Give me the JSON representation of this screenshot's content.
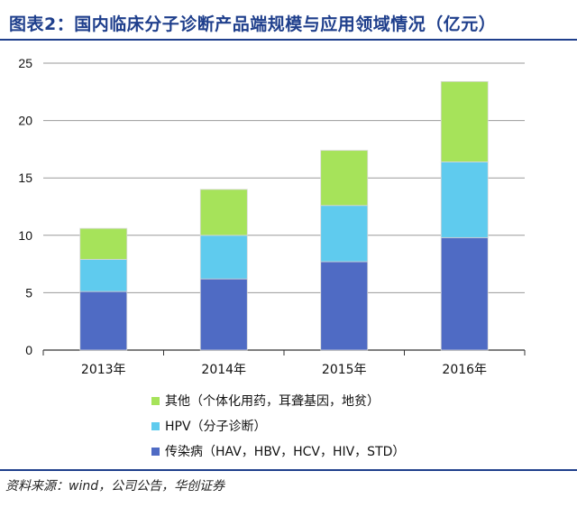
{
  "header": {
    "title": "图表2：国内临床分子诊断产品端规模与应用领域情况（亿元）"
  },
  "footer": {
    "source": "资料来源：wind，公司公告，华创证券"
  },
  "chart_data": {
    "type": "bar",
    "stacked": true,
    "categories": [
      "2013年",
      "2014年",
      "2015年",
      "2016年"
    ],
    "series": [
      {
        "name": "传染病（HAV，HBV，HCV，HIV，STD）",
        "color": "#4f6bc4",
        "values": [
          5.1,
          6.2,
          7.7,
          9.8
        ]
      },
      {
        "name": "HPV（分子诊断）",
        "color": "#5fcbee",
        "values": [
          2.8,
          3.8,
          4.9,
          6.6
        ]
      },
      {
        "name": "其他（个体化用药，耳聋基因，地贫）",
        "color": "#a6e35a",
        "values": [
          2.7,
          4.0,
          4.8,
          7.0
        ]
      }
    ],
    "title": "",
    "xlabel": "",
    "ylabel": "",
    "ylim": [
      0,
      25
    ],
    "yticks": [
      0,
      5,
      10,
      15,
      20,
      25
    ],
    "grid": true,
    "legend_position": "bottom"
  }
}
